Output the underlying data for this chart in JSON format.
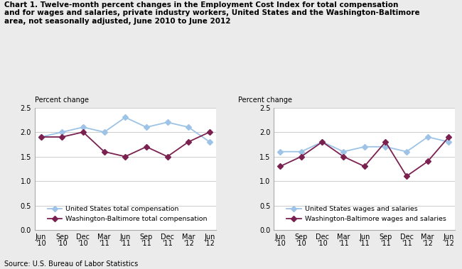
{
  "title_line1": "Chart 1. Twelve-month percent changes in the Employment Cost Index for total compensation",
  "title_line2": "and for wages and salaries, private industry workers, United States and the Washington-Baltimore",
  "title_line3": "area, not seasonally adjusted, June 2010 to June 2012",
  "source": "Source: U.S. Bureau of Labor Statistics",
  "x_labels": [
    "Jun\n'10",
    "Sep\n'10",
    "Dec\n'10",
    "Mar\n'11",
    "Jun\n'11",
    "Sep\n'11",
    "Dec\n'11",
    "Mar\n'12",
    "Jun\n'12"
  ],
  "ylabel": "Percent change",
  "ylim": [
    0.0,
    2.5
  ],
  "yticks": [
    0.0,
    0.5,
    1.0,
    1.5,
    2.0,
    2.5
  ],
  "left_us_total_comp": [
    1.9,
    2.0,
    2.1,
    2.0,
    2.3,
    2.1,
    2.2,
    2.1,
    1.8
  ],
  "left_wb_total_comp": [
    1.9,
    1.9,
    2.0,
    1.6,
    1.5,
    1.7,
    1.5,
    1.8,
    2.0
  ],
  "right_us_wages": [
    1.6,
    1.6,
    1.8,
    1.6,
    1.7,
    1.7,
    1.6,
    1.9,
    1.8
  ],
  "right_wb_wages": [
    1.3,
    1.5,
    1.8,
    1.5,
    1.3,
    1.8,
    1.1,
    1.4,
    1.9
  ],
  "color_us": "#9DC3E6",
  "color_wb": "#7B2150",
  "left_legend_us": "United States total compensation",
  "left_legend_wb": "Washington-Baltimore total compensation",
  "right_legend_us": "United States wages and salaries",
  "right_legend_wb": "Washington-Baltimore wages and salaries",
  "marker": "D",
  "markersize": 4,
  "linewidth": 1.3,
  "grid_color": "#CCCCCC",
  "bg_color": "#EBEBEB",
  "plot_bg": "#FFFFFF",
  "title_fontsize": 7.5,
  "label_fontsize": 7,
  "tick_fontsize": 7,
  "legend_fontsize": 6.8,
  "source_fontsize": 7
}
